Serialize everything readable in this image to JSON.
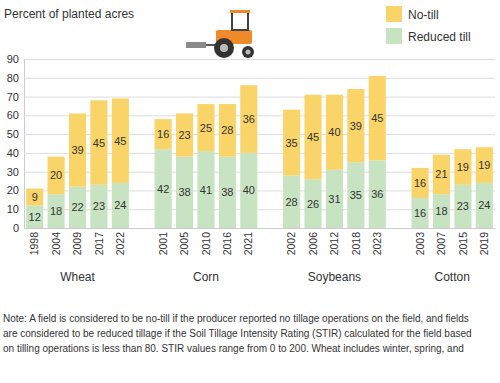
{
  "chart_data": {
    "type": "bar",
    "title": "Percent of planted acres",
    "categories": [
      "1998",
      "2004",
      "2009",
      "2017",
      "2022",
      "2001",
      "2005",
      "2010",
      "2016",
      "2021",
      "2002",
      "2006",
      "2012",
      "2018",
      "2023",
      "2003",
      "2007",
      "2015",
      "2019"
    ],
    "category_groups": [
      "Wheat",
      "Wheat",
      "Wheat",
      "Wheat",
      "Wheat",
      "Corn",
      "Corn",
      "Corn",
      "Corn",
      "Corn",
      "Soybeans",
      "Soybeans",
      "Soybeans",
      "Soybeans",
      "Soybeans",
      "Cotton",
      "Cotton",
      "Cotton",
      "Cotton"
    ],
    "series": [
      {
        "name": "Reduced till",
        "color": "#c8e3c2",
        "values": [
          12,
          18,
          22,
          23,
          24,
          42,
          38,
          41,
          38,
          40,
          28,
          26,
          31,
          35,
          36,
          16,
          18,
          23,
          24
        ]
      },
      {
        "name": "No-till",
        "color": "#f9d468",
        "values": [
          9,
          20,
          39,
          45,
          45,
          16,
          23,
          25,
          28,
          36,
          35,
          45,
          40,
          39,
          45,
          16,
          21,
          19,
          19
        ]
      }
    ],
    "ylim": [
      0,
      90
    ],
    "yticks": [
      0,
      10,
      20,
      30,
      40,
      50,
      60,
      70,
      80,
      90
    ],
    "grid": true,
    "stacked": true,
    "data_labels": true,
    "legend": "top-right",
    "note": [
      "Note: A field is considered to be no-till if the producer reported no tillage operations on the field, and fields",
      "are considered to be reduced tillage if the Soil Tillage Intensity Rating (STIR) calculated for the field based",
      "on tilling operations is less than 80. STIR values range from 0 to 200. Wheat includes winter, spring, and"
    ]
  }
}
